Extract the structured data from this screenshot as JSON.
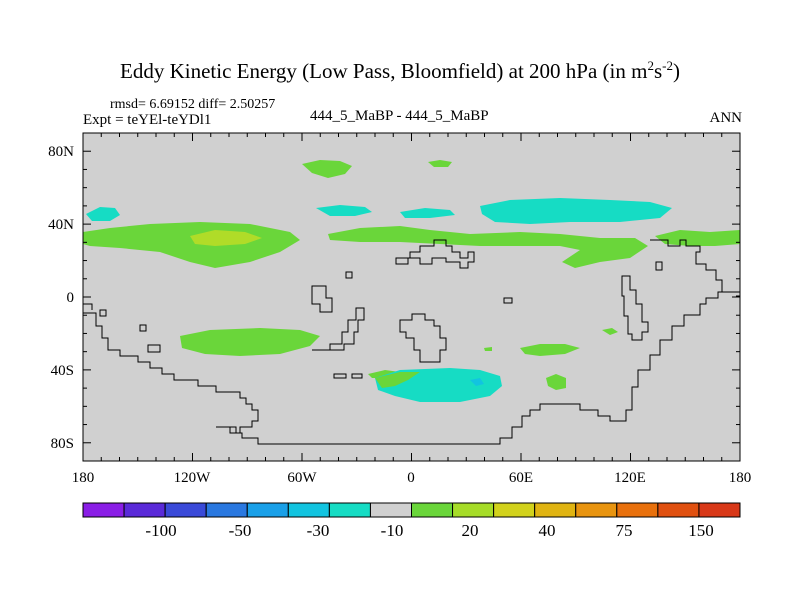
{
  "title": {
    "main": "Eddy Kinetic Energy (Low Pass, Bloomfield) at 200 hPa (in m",
    "sup1": "2",
    "s": "s",
    "sup2": "-2",
    "close": ")"
  },
  "stats": "rmsd= 6.69152 diff= 2.50257",
  "expt": "Expt = teYEl-teYDl1",
  "center_label": "444_5_MaBP - 444_5_MaBP",
  "season": "ANN",
  "lat_ticks": [
    "80N",
    "40N",
    "0",
    "40S",
    "80S"
  ],
  "lon_ticks": [
    "180",
    "120W",
    "60W",
    "0",
    "60E",
    "120E",
    "180"
  ],
  "colorbar": {
    "colors": [
      "#8a1ee6",
      "#5a2ad8",
      "#3a4ad8",
      "#2a78e0",
      "#1aa0e8",
      "#12c4e0",
      "#16dcc4",
      "#d0d0d0",
      "#6ad63a",
      "#a6dc28",
      "#d2d21c",
      "#e0b412",
      "#e89410",
      "#e8700c",
      "#e05010",
      "#d83818"
    ],
    "labels": [
      "-100",
      "-50",
      "-30",
      "-10",
      "20",
      "40",
      "75",
      "150"
    ]
  },
  "field_colors": {
    "background": "#d0d0d0",
    "green": "#6ad63a",
    "cyan": "#16dcc4",
    "yellow": "#b0dc28",
    "blue": "#12c4e0"
  }
}
